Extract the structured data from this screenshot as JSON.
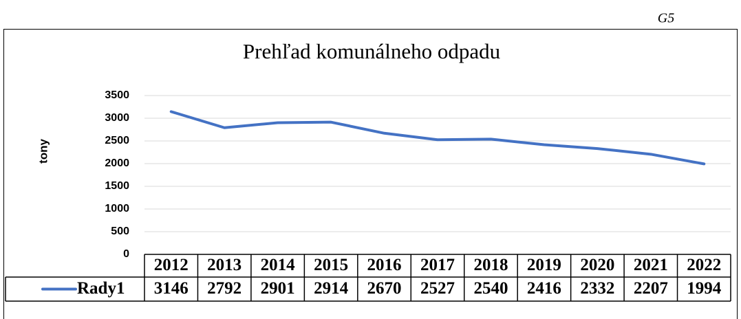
{
  "page_label": "G5",
  "chart_data": {
    "type": "line",
    "title": "Prehľad komunálneho odpadu",
    "y_label": "tony",
    "categories": [
      "2012",
      "2013",
      "2014",
      "2015",
      "2016",
      "2017",
      "2018",
      "2019",
      "2020",
      "2021",
      "2022"
    ],
    "series": [
      {
        "name": "Rady1",
        "color": "#4472c4",
        "values": [
          3146,
          2792,
          2901,
          2914,
          2670,
          2527,
          2540,
          2416,
          2332,
          2207,
          1994
        ]
      }
    ],
    "ylim": [
      0,
      3500
    ],
    "yticks": [
      0,
      500,
      1000,
      1500,
      2000,
      2500,
      3000,
      3500
    ],
    "grid": true
  }
}
